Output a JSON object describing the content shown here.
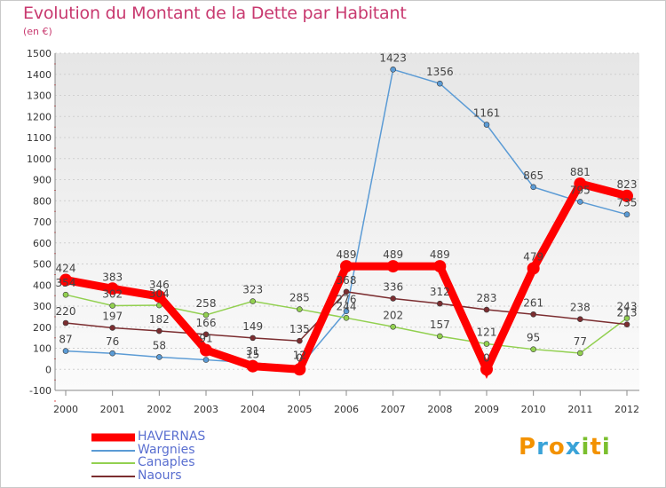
{
  "title": "Evolution du Montant de la Dette par Habitant",
  "subtitle": "(en €)",
  "logo": {
    "text": "Proxiti",
    "letters": [
      "P",
      "r",
      "o",
      "x",
      "i",
      "t",
      "i"
    ],
    "colors": [
      "#f39200",
      "#3aa3d8",
      "#f39200",
      "#3aa3d8",
      "#7bbf2e",
      "#f39200",
      "#7bbf2e"
    ]
  },
  "chart_data": {
    "type": "line",
    "title": "Evolution du Montant de la Dette par Habitant",
    "ylabel": "(en €)",
    "x": [
      "2000",
      "2001",
      "2002",
      "2003",
      "2004",
      "2005",
      "2006",
      "2007",
      "2008",
      "2009",
      "2010",
      "2011",
      "2012"
    ],
    "ylim": [
      -100,
      1500
    ],
    "yticks": [
      -100,
      0,
      100,
      200,
      300,
      400,
      500,
      600,
      700,
      800,
      900,
      1000,
      1100,
      1200,
      1300,
      1400,
      1500
    ],
    "grid": "horizontal dashed",
    "legend_position": "bottom-left",
    "series": [
      {
        "name": "HAVERNAS",
        "color": "#ff0000",
        "values": [
          424,
          383,
          346,
          91,
          15,
          0,
          489,
          489,
          489,
          0,
          479,
          881,
          823
        ],
        "labels": [
          "424",
          "383",
          "346",
          "91",
          "15",
          "0",
          "489",
          "489",
          "489",
          "0",
          "479",
          "881",
          "823"
        ]
      },
      {
        "name": "Wargnies",
        "color": "#5b9bd5",
        "values": [
          87,
          76,
          58,
          45,
          31,
          12,
          276,
          1423,
          1356,
          1161,
          865,
          795,
          735
        ],
        "labels": [
          "87",
          "76",
          "58",
          "",
          "31",
          "12",
          "276",
          "1423",
          "1356",
          "1161",
          "865",
          "795",
          "735"
        ]
      },
      {
        "name": "Canaples",
        "color": "#92d050",
        "values": [
          354,
          302,
          304,
          258,
          323,
          285,
          244,
          202,
          157,
          121,
          95,
          77,
          243
        ],
        "labels": [
          "354",
          "302",
          "304",
          "258",
          "323",
          "285",
          "244",
          "202",
          "157",
          "121",
          "95",
          "77",
          "243"
        ]
      },
      {
        "name": "Naours",
        "color": "#7b2d30",
        "values": [
          220,
          197,
          182,
          166,
          149,
          135,
          368,
          336,
          312,
          283,
          261,
          238,
          213
        ],
        "labels": [
          "220",
          "197",
          "182",
          "166",
          "149",
          "135",
          "368",
          "336",
          "312",
          "283",
          "261",
          "238",
          "213"
        ]
      }
    ]
  }
}
